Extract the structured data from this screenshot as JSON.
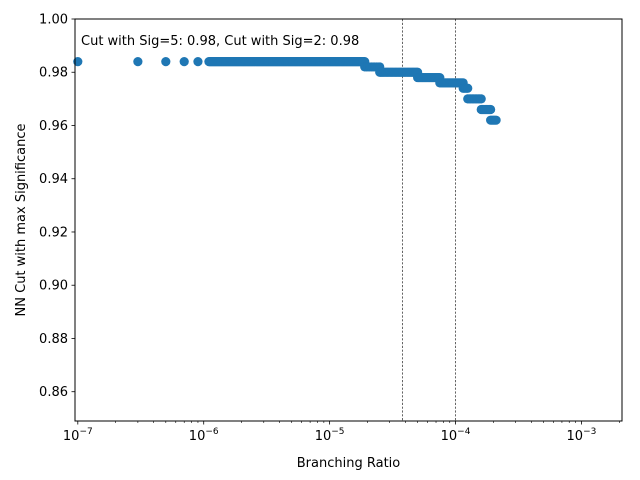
{
  "chart_data": {
    "type": "scatter",
    "title": "",
    "xlabel": "Branching Ratio",
    "ylabel": "NN Cut with max Significance",
    "x_scale": "log",
    "xlim": [
      9.5e-08,
      0.0021
    ],
    "ylim": [
      0.849,
      1.0
    ],
    "grid": false,
    "marker_color": "#1f77b4",
    "x_ticks": [
      {
        "value": 1e-07,
        "base": "10",
        "exp": "−7"
      },
      {
        "value": 1e-06,
        "base": "10",
        "exp": "−6"
      },
      {
        "value": 1e-05,
        "base": "10",
        "exp": "−5"
      },
      {
        "value": 0.0001,
        "base": "10",
        "exp": "−4"
      },
      {
        "value": 0.001,
        "base": "10",
        "exp": "−3"
      }
    ],
    "y_ticks": [
      0.86,
      0.88,
      0.9,
      0.92,
      0.94,
      0.96,
      0.98,
      1.0
    ],
    "y_tick_labels": [
      "0.86",
      "0.88",
      "0.90",
      "0.92",
      "0.94",
      "0.96",
      "0.98",
      "1.00"
    ],
    "vlines": [
      {
        "x": 3.8e-05,
        "style": "dashed",
        "color": "#000000"
      },
      {
        "x": 0.0001,
        "style": "dashed",
        "color": "#000000"
      }
    ],
    "annotation": "Cut with Sig=5: 0.98, Cut with Sig=2: 0.98",
    "segments": [
      {
        "x_start": 1e-07,
        "x_end": 1e-07,
        "n": 1,
        "y": 0.984
      },
      {
        "x_start": 3e-07,
        "x_end": 3e-07,
        "n": 1,
        "y": 0.984
      },
      {
        "x_start": 5e-07,
        "x_end": 5e-07,
        "n": 1,
        "y": 0.984
      },
      {
        "x_start": 7e-07,
        "x_end": 7e-07,
        "n": 1,
        "y": 0.984
      },
      {
        "x_start": 9e-07,
        "x_end": 9e-07,
        "n": 1,
        "y": 0.984
      },
      {
        "x_start": 1.1e-06,
        "x_end": 1.9e-05,
        "n": 180,
        "y": 0.984
      },
      {
        "x_start": 1.9e-05,
        "x_end": 2.5e-05,
        "n": 10,
        "y": 0.982
      },
      {
        "x_start": 2.5e-05,
        "x_end": 5e-05,
        "n": 30,
        "y": 0.98
      },
      {
        "x_start": 5e-05,
        "x_end": 7.5e-05,
        "n": 20,
        "y": 0.978
      },
      {
        "x_start": 7.5e-05,
        "x_end": 0.000115,
        "n": 20,
        "y": 0.976
      },
      {
        "x_start": 0.000115,
        "x_end": 0.000125,
        "n": 4,
        "y": 0.974
      },
      {
        "x_start": 0.000125,
        "x_end": 0.00016,
        "n": 10,
        "y": 0.97
      },
      {
        "x_start": 0.00016,
        "x_end": 0.00019,
        "n": 8,
        "y": 0.966
      },
      {
        "x_start": 0.00019,
        "x_end": 0.00021,
        "n": 5,
        "y": 0.962
      }
    ]
  }
}
